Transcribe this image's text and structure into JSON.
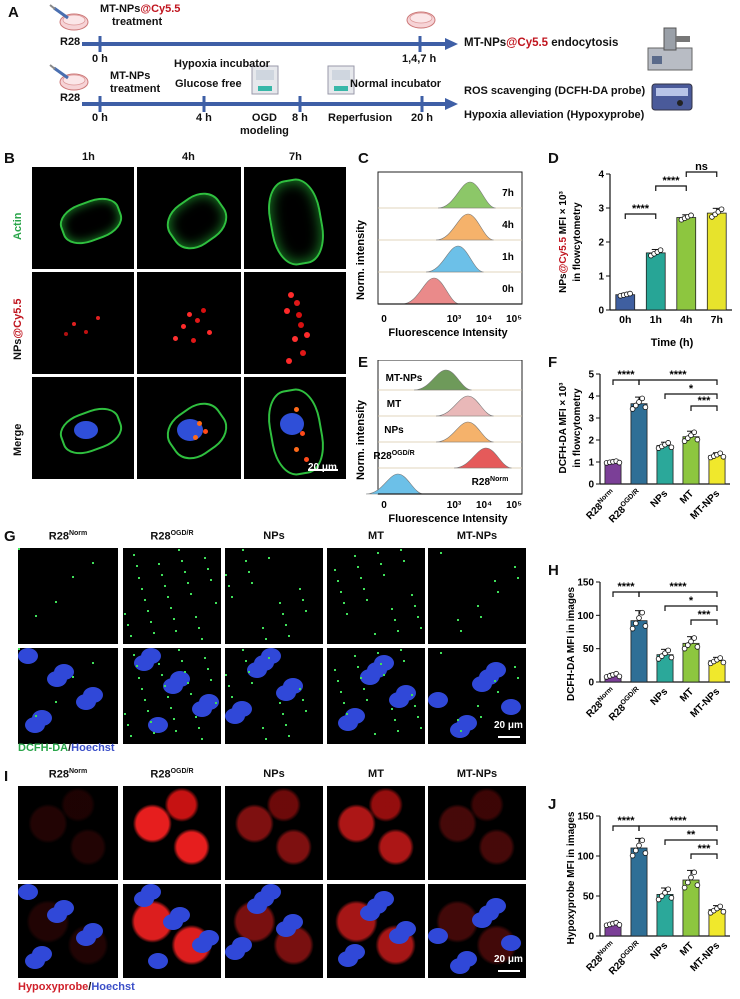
{
  "panelA": {
    "label": "A",
    "row1": {
      "cell": "R28",
      "treatment_prefix": "MT-NPs",
      "treatment_suffix": "@Cy5.5",
      "treatment_line2": "treatment",
      "t0": "0 h",
      "t1": "1,4,7 h",
      "result_prefix": "MT-NPs",
      "result_red": "@Cy5.5",
      "result_suffix": " endocytosis"
    },
    "row2": {
      "cell": "R28",
      "treatment": "MT-NPs",
      "treatment_line2": "treatment",
      "hypoxia_incubator": "Hypoxia incubator",
      "glucose_free": "Glucose free",
      "normal_incubator": "Normal incubator",
      "ogd": "OGD",
      "modeling": "modeling",
      "reperfusion": "Reperfusion",
      "t0": "0 h",
      "t4": "4 h",
      "t8": "8 h",
      "t20": "20 h",
      "result1": "ROS scavenging (DCFH-DA probe)",
      "result2": "Hypoxia alleviation (Hypoxyprobe)"
    }
  },
  "panelB": {
    "label": "B",
    "cols": [
      "1h",
      "4h",
      "7h"
    ],
    "row_actin": "Actin",
    "row_nps_prefix": "NPs",
    "row_nps_suffix": "@Cy5.5",
    "row_merge": "Merge",
    "scale": "20 μm"
  },
  "panelC": {
    "label": "C",
    "ylabel": "Norm. intensity",
    "xlabel": "Fluorescence Intensity",
    "ticks": [
      "0",
      "10³",
      "10⁴",
      "10⁵"
    ],
    "rows": [
      {
        "label": "7h",
        "color": "#8cc768"
      },
      {
        "label": "4h",
        "color": "#f5b26b"
      },
      {
        "label": "1h",
        "color": "#6cc0e8"
      },
      {
        "label": "0h",
        "color": "#ea8a8a"
      }
    ]
  },
  "panelD": {
    "label": "D",
    "ylabel_prefix": "NPs",
    "ylabel_red": "@Cy5.5",
    "ylabel_suffix": " MFI × 10³",
    "ylabel2": "in flowcytometry",
    "xlabel": "Time (h)",
    "sig": [
      "****",
      "****",
      "ns"
    ],
    "chart_data": {
      "type": "bar",
      "categories": [
        "0h",
        "1h",
        "4h",
        "7h"
      ],
      "values": [
        0.45,
        1.68,
        2.72,
        2.85
      ],
      "errors": [
        0.04,
        0.1,
        0.08,
        0.14
      ],
      "colors": [
        "#3f5fa0",
        "#27a596",
        "#8dc63f",
        "#e7e32c"
      ],
      "ylim": [
        0,
        4
      ],
      "yticks": [
        0,
        1,
        2,
        3,
        4
      ]
    }
  },
  "panelE": {
    "label": "E",
    "ylabel": "Norm. intensity",
    "xlabel": "Fluorescence Intensity",
    "ticks": [
      "0",
      "10³",
      "10⁴",
      "10⁵"
    ],
    "rows": [
      {
        "label": "MT-NPs",
        "color": "#6e9a5a"
      },
      {
        "label": "MT",
        "color": "#e9b8b8"
      },
      {
        "label": "NPs",
        "color": "#f5b26b"
      },
      {
        "label": "R28",
        "sup": "OGD/R",
        "color": "#e55a5a"
      },
      {
        "label": "R28",
        "sup": "Norm",
        "color": "#6cc0e8"
      }
    ]
  },
  "panelF": {
    "label": "F",
    "ylabel": "DCFH-DA MFI × 10³",
    "ylabel2": "in flowcytometry",
    "sig": [
      "****",
      "****",
      "*",
      "***"
    ],
    "chart_data": {
      "type": "bar",
      "categories": [
        "R28Norm",
        "R28OGD/R",
        "NPs",
        "MT",
        "MT-NPs"
      ],
      "values": [
        1.0,
        3.65,
        1.75,
        2.15,
        1.3
      ],
      "errors": [
        0.05,
        0.3,
        0.15,
        0.25,
        0.12
      ],
      "colors": [
        "#7b3f97",
        "#2f6f96",
        "#2ba89a",
        "#8dc63f",
        "#f0e82c"
      ],
      "ylim": [
        0,
        5
      ],
      "yticks": [
        0,
        1,
        2,
        3,
        4,
        5
      ]
    }
  },
  "panelG": {
    "label": "G",
    "cols": [
      {
        "t": "R28",
        "s": "Norm"
      },
      {
        "t": "R28",
        "s": "OGD/R"
      },
      {
        "t": "NPs",
        "s": ""
      },
      {
        "t": "MT",
        "s": ""
      },
      {
        "t": "MT-NPs",
        "s": ""
      }
    ],
    "legend1": "DCFH-DA",
    "legend_sep": "/",
    "legend2": "Hoechst",
    "scale": "20 μm"
  },
  "panelH": {
    "label": "H",
    "ylabel": "DCFH-DA MFI in images",
    "sig": [
      "****",
      "****",
      "*",
      "***"
    ],
    "chart_data": {
      "type": "bar",
      "categories": [
        "R28Norm",
        "R28OGD/R",
        "NPs",
        "MT",
        "MT-NPs"
      ],
      "values": [
        10,
        92,
        41,
        58,
        32
      ],
      "errors": [
        3,
        15,
        8,
        10,
        5
      ],
      "colors": [
        "#7b3f97",
        "#2f6f96",
        "#2ba89a",
        "#8dc63f",
        "#f0e82c"
      ],
      "ylim": [
        0,
        150
      ],
      "yticks": [
        0,
        50,
        100,
        150
      ]
    }
  },
  "panelI": {
    "label": "I",
    "cols": [
      {
        "t": "R28",
        "s": "Norm"
      },
      {
        "t": "R28",
        "s": "OGD/R"
      },
      {
        "t": "NPs",
        "s": ""
      },
      {
        "t": "MT",
        "s": ""
      },
      {
        "t": "MT-NPs",
        "s": ""
      }
    ],
    "legend1": "Hypoxyprobe",
    "legend_sep": "/",
    "legend2": "Hoechst",
    "scale": "20 μm"
  },
  "panelJ": {
    "label": "J",
    "ylabel": "Hypoxyprobe MFI in images",
    "sig": [
      "****",
      "****",
      "**",
      "***"
    ],
    "chart_data": {
      "type": "bar",
      "categories": [
        "R28Norm",
        "R28OGD/R",
        "NPs",
        "MT",
        "MT-NPs"
      ],
      "values": [
        15,
        110,
        52,
        70,
        33
      ],
      "errors": [
        2,
        12,
        8,
        12,
        5
      ],
      "colors": [
        "#7b3f97",
        "#2f6f96",
        "#2ba89a",
        "#8dc63f",
        "#f0e82c"
      ],
      "ylim": [
        0,
        150
      ],
      "yticks": [
        0,
        50,
        100,
        150
      ]
    }
  }
}
